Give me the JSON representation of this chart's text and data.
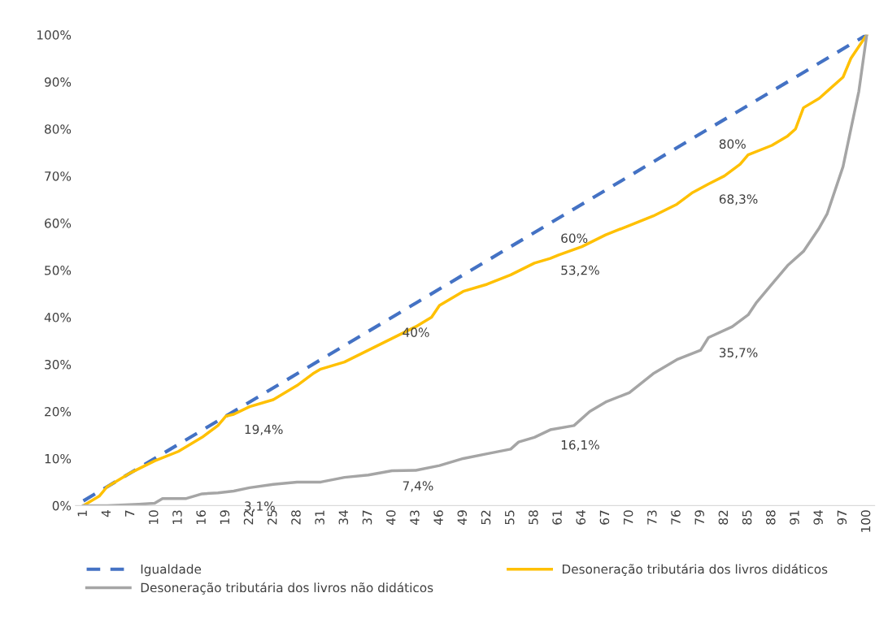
{
  "chart_data": {
    "type": "line",
    "xlim": [
      0,
      101
    ],
    "xticks": [
      1,
      4,
      7,
      10,
      13,
      16,
      19,
      22,
      25,
      28,
      31,
      34,
      37,
      40,
      43,
      46,
      49,
      52,
      55,
      58,
      61,
      64,
      67,
      70,
      73,
      76,
      79,
      82,
      85,
      88,
      91,
      94,
      97,
      100
    ],
    "ylim": [
      0,
      100
    ],
    "yticks": [
      {
        "value": 0,
        "label": "0%"
      },
      {
        "value": 10,
        "label": "10%"
      },
      {
        "value": 20,
        "label": "20%"
      },
      {
        "value": 30,
        "label": "30%"
      },
      {
        "value": 40,
        "label": "40%"
      },
      {
        "value": 50,
        "label": "50%"
      },
      {
        "value": 60,
        "label": "60%"
      },
      {
        "value": 70,
        "label": "70%"
      },
      {
        "value": 80,
        "label": "80%"
      },
      {
        "value": 90,
        "label": "90%"
      },
      {
        "value": 100,
        "label": "100%"
      }
    ],
    "grid": false,
    "legend": "bottom",
    "marker": "none",
    "series": [
      {
        "name": "Igualdade",
        "color": "#4472c4",
        "line_style": "dashed",
        "x": [
          1,
          100
        ],
        "values": [
          1,
          100
        ]
      },
      {
        "name": "Desoneração tributária dos livros didáticos",
        "color": "#ffc000",
        "line_style": "solid",
        "x": [
          1,
          3,
          4,
          5,
          7,
          10,
          13,
          16,
          18,
          19,
          20,
          22,
          25,
          28,
          30,
          31,
          34,
          37,
          40,
          43,
          45,
          46,
          49,
          52,
          55,
          58,
          60,
          61,
          64,
          67,
          70,
          73,
          76,
          78,
          80,
          82,
          84,
          85,
          88,
          90,
          91,
          92,
          94,
          97,
          98,
          99,
          100
        ],
        "values": [
          0,
          2,
          4,
          5,
          7,
          9.5,
          11.5,
          14.5,
          17,
          19,
          19.4,
          21,
          22.5,
          25.5,
          28,
          29,
          30.5,
          33,
          35.5,
          38,
          40,
          42.5,
          45.5,
          47,
          49,
          51.5,
          52.5,
          53.2,
          55,
          57.5,
          59.5,
          61.5,
          64,
          66.5,
          68.3,
          70,
          72.5,
          74.5,
          76.5,
          78.5,
          80,
          84.5,
          86.5,
          91,
          95,
          97.5,
          100
        ]
      },
      {
        "name": "Desoneração tributária dos livros não didáticos",
        "color": "#a5a5a5",
        "line_style": "solid",
        "x": [
          1,
          4,
          8,
          10,
          11,
          14,
          16,
          18,
          20,
          22,
          25,
          28,
          31,
          34,
          37,
          40,
          43,
          46,
          49,
          52,
          55,
          56,
          58,
          60,
          63,
          65,
          67,
          70,
          73,
          76,
          79,
          80,
          83,
          85,
          86,
          88,
          90,
          92,
          94,
          95,
          97,
          98,
          99,
          100
        ],
        "values": [
          0,
          0,
          0.3,
          0.5,
          1.5,
          1.5,
          2.5,
          2.7,
          3.1,
          3.8,
          4.5,
          5,
          5,
          6,
          6.5,
          7.4,
          7.5,
          8.5,
          10,
          11,
          12,
          13.5,
          14.5,
          16.1,
          17,
          20,
          22,
          24,
          28,
          31,
          33,
          35.7,
          38,
          40.5,
          43,
          47,
          51,
          54,
          59,
          62,
          72,
          80,
          88,
          100
        ]
      }
    ],
    "annotations": [
      {
        "text": "40%",
        "x": 40,
        "y": 40
      },
      {
        "text": "60%",
        "x": 60,
        "y": 60
      },
      {
        "text": "80%",
        "x": 80,
        "y": 80
      },
      {
        "text": "19,4%",
        "x": 20,
        "y": 19.4
      },
      {
        "text": "53,2%",
        "x": 60,
        "y": 53.2
      },
      {
        "text": "68,3%",
        "x": 80,
        "y": 68.3
      },
      {
        "text": "3,1%",
        "x": 20,
        "y": 3.1
      },
      {
        "text": "7,4%",
        "x": 40,
        "y": 7.4
      },
      {
        "text": "16,1%",
        "x": 60,
        "y": 16.1
      },
      {
        "text": "35,7%",
        "x": 80,
        "y": 35.7
      }
    ]
  }
}
